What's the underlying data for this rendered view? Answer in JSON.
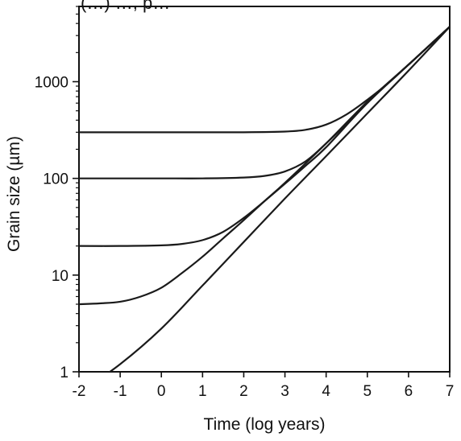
{
  "chart_data": {
    "type": "line",
    "title": "",
    "title_partial_visible": "(…) …, p…",
    "xlabel": "Time (log years)",
    "ylabel": "Grain size (µm)",
    "x_ticks": [
      -2,
      -1,
      0,
      1,
      2,
      3,
      4,
      5,
      6,
      7
    ],
    "x_tick_labels": [
      "-2",
      "-1",
      "0",
      "1",
      "2",
      "3",
      "4",
      "5",
      "6",
      "7"
    ],
    "xlim": [
      -2,
      7
    ],
    "y_scale": "log",
    "ylim": [
      1,
      6000
    ],
    "y_major_ticks": [
      1,
      10,
      100,
      1000
    ],
    "y_tick_labels": [
      "1",
      "10",
      "100",
      "1000"
    ],
    "grid": false,
    "legend": "none",
    "line_color": "#1a1a1a",
    "series": [
      {
        "initial_grain_size": 0,
        "x": [
          -2,
          -1,
          0,
          1,
          2,
          3,
          4,
          5,
          6,
          7
        ],
        "y": [
          0.6,
          1.2,
          2.8,
          7.8,
          22,
          62,
          170,
          470,
          1300,
          3700
        ]
      },
      {
        "initial_grain_size": 5,
        "x": [
          -2,
          -1.5,
          -1,
          -0.5,
          0,
          0.5,
          1,
          1.5,
          2,
          2.5,
          3,
          4,
          5,
          6,
          7
        ],
        "y": [
          5,
          5.1,
          5.3,
          6,
          7.4,
          10.5,
          15.5,
          24,
          37,
          58,
          90,
          230,
          620,
          1500,
          3700
        ]
      },
      {
        "initial_grain_size": 20,
        "x": [
          -2,
          -1,
          0,
          0.5,
          1,
          1.5,
          2,
          2.5,
          3,
          3.5,
          4,
          5,
          6,
          7
        ],
        "y": [
          20,
          20,
          20.3,
          21,
          23,
          28,
          39,
          58,
          88,
          135,
          210,
          600,
          1500,
          3700
        ]
      },
      {
        "initial_grain_size": 100,
        "x": [
          -2,
          -1,
          0,
          1,
          2,
          2.5,
          3,
          3.5,
          4,
          4.5,
          5,
          6,
          7
        ],
        "y": [
          100,
          100,
          100,
          100,
          102,
          106,
          118,
          150,
          230,
          370,
          620,
          1500,
          3700
        ]
      },
      {
        "initial_grain_size": 300,
        "x": [
          -2,
          -1,
          0,
          1,
          2,
          3,
          3.5,
          4,
          4.5,
          5,
          5.5,
          6,
          7
        ],
        "y": [
          300,
          300,
          300,
          300,
          300,
          305,
          318,
          360,
          460,
          650,
          960,
          1500,
          3700
        ]
      }
    ]
  }
}
